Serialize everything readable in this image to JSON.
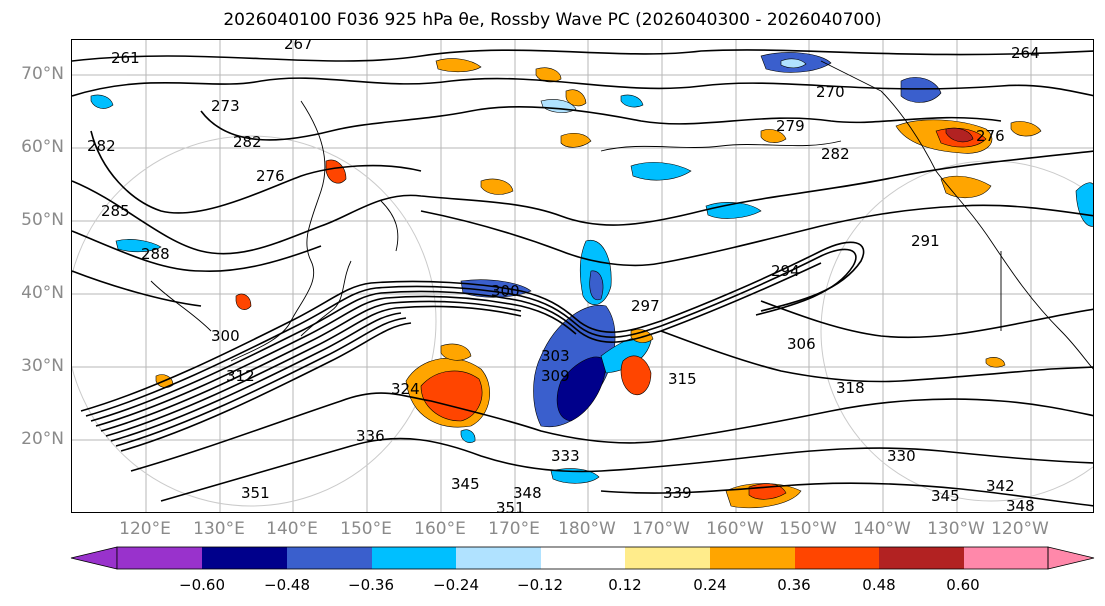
{
  "title": "2026040100 F036 925 hPa θe, Rossby Wave PC (2026040300 - 2026040700)",
  "lat_labels": [
    "70°N",
    "60°N",
    "50°N",
    "40°N",
    "30°N",
    "20°N"
  ],
  "lon_labels": [
    "120°E",
    "130°E",
    "140°E",
    "150°E",
    "160°E",
    "170°E",
    "180°W",
    "170°W",
    "160°W",
    "150°W",
    "140°W",
    "130°W",
    "120°W"
  ],
  "colorbar": {
    "ticks": [
      "−0.60",
      "−0.48",
      "−0.36",
      "−0.24",
      "−0.12",
      "0.12",
      "0.24",
      "0.36",
      "0.48",
      "0.60"
    ],
    "colors": [
      "#9932cc",
      "#00008b",
      "#3a5fcd",
      "#00bfff",
      "#b0e2ff",
      "#ffffff",
      "#ffec8b",
      "#ffa500",
      "#ff4500",
      "#b22222",
      "#ff88aa"
    ]
  },
  "contour_labels": [
    "267",
    "264",
    "261",
    "273",
    "282",
    "270",
    "279",
    "276",
    "282",
    "276",
    "282",
    "285",
    "288",
    "291",
    "294",
    "297",
    "300",
    "300",
    "303",
    "306",
    "309",
    "312",
    "315",
    "318",
    "324",
    "330",
    "333",
    "336",
    "339",
    "342",
    "345",
    "348",
    "351",
    "345",
    "348",
    "351"
  ],
  "colors": {
    "contour": "#000000",
    "grid": "#9a9a9a",
    "coast": "#000000"
  }
}
